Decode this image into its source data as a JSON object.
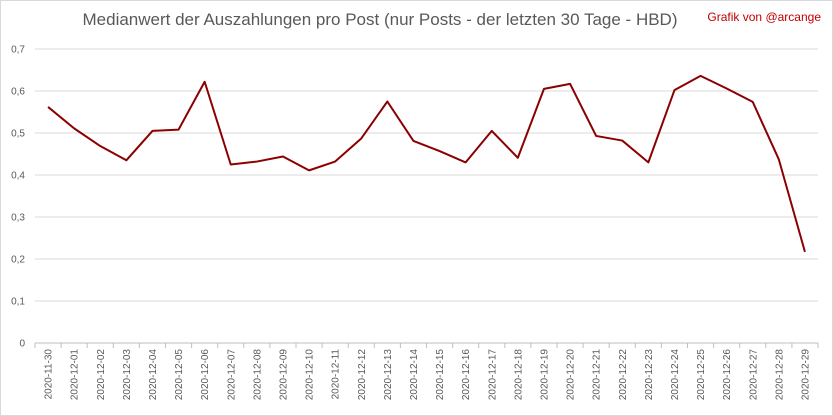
{
  "chart_data": {
    "type": "line",
    "title": "Medianwert der Auszahlungen pro Post (nur Posts - der letzten 30 Tage - HBD)",
    "credit": "Grafik von @arcange",
    "xlabel": "",
    "ylabel": "",
    "ylim": [
      0,
      0.7
    ],
    "yticks": [
      "0",
      "0,1",
      "0,2",
      "0,3",
      "0,4",
      "0,5",
      "0,6",
      "0,7"
    ],
    "grid": true,
    "legend": "none",
    "line_color": "#8b0000",
    "categories": [
      "2020-11-30",
      "2020-12-01",
      "2020-12-02",
      "2020-12-03",
      "2020-12-04",
      "2020-12-05",
      "2020-12-06",
      "2020-12-07",
      "2020-12-08",
      "2020-12-09",
      "2020-12-10",
      "2020-12-11",
      "2020-12-12",
      "2020-12-13",
      "2020-12-14",
      "2020-12-15",
      "2020-12-16",
      "2020-12-17",
      "2020-12-18",
      "2020-12-19",
      "2020-12-20",
      "2020-12-21",
      "2020-12-22",
      "2020-12-23",
      "2020-12-24",
      "2020-12-25",
      "2020-12-26",
      "2020-12-27",
      "2020-12-28",
      "2020-12-29"
    ],
    "values": [
      0.562,
      0.511,
      0.469,
      0.435,
      0.505,
      0.508,
      0.622,
      0.425,
      0.432,
      0.444,
      0.411,
      0.432,
      0.487,
      0.575,
      0.481,
      0.457,
      0.43,
      0.505,
      0.441,
      0.605,
      0.617,
      0.493,
      0.482,
      0.43,
      0.602,
      0.636,
      0.606,
      0.574,
      0.437,
      0.217
    ]
  }
}
